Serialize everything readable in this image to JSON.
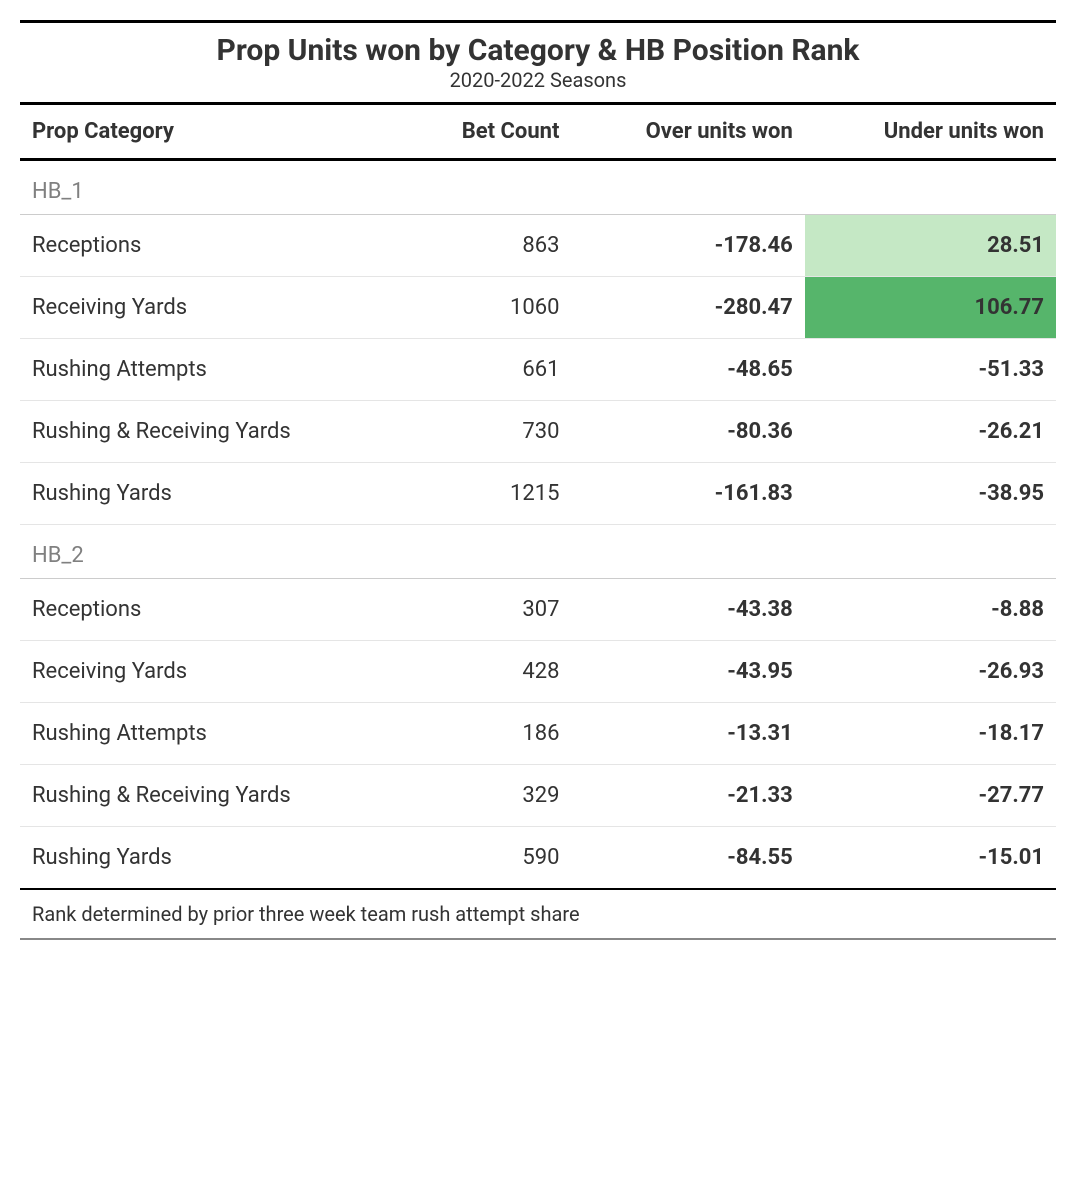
{
  "title": "Prop Units won by Category & HB Position Rank",
  "subtitle": "2020-2022 Seasons",
  "columns": [
    "Prop Category",
    "Bet Count",
    "Over units won",
    "Under units won"
  ],
  "highlight_colors": {
    "light": "#c5e8c5",
    "dark": "#56b56b"
  },
  "groups": [
    {
      "label": "HB_1",
      "rows": [
        {
          "category": "Receptions",
          "bet_count": "863",
          "over": "-178.46",
          "under": "28.51",
          "under_hl": "light"
        },
        {
          "category": "Receiving Yards",
          "bet_count": "1060",
          "over": "-280.47",
          "under": "106.77",
          "under_hl": "dark"
        },
        {
          "category": "Rushing Attempts",
          "bet_count": "661",
          "over": "-48.65",
          "under": "-51.33"
        },
        {
          "category": "Rushing & Receiving Yards",
          "bet_count": "730",
          "over": "-80.36",
          "under": "-26.21"
        },
        {
          "category": "Rushing Yards",
          "bet_count": "1215",
          "over": "-161.83",
          "under": "-38.95"
        }
      ]
    },
    {
      "label": "HB_2",
      "rows": [
        {
          "category": "Receptions",
          "bet_count": "307",
          "over": "-43.38",
          "under": "-8.88"
        },
        {
          "category": "Receiving Yards",
          "bet_count": "428",
          "over": "-43.95",
          "under": "-26.93"
        },
        {
          "category": "Rushing Attempts",
          "bet_count": "186",
          "over": "-13.31",
          "under": "-18.17"
        },
        {
          "category": "Rushing & Receiving Yards",
          "bet_count": "329",
          "over": "-21.33",
          "under": "-27.77"
        },
        {
          "category": "Rushing Yards",
          "bet_count": "590",
          "over": "-84.55",
          "under": "-15.01"
        }
      ]
    }
  ],
  "footnote": "Rank determined by prior three week team rush attempt share"
}
